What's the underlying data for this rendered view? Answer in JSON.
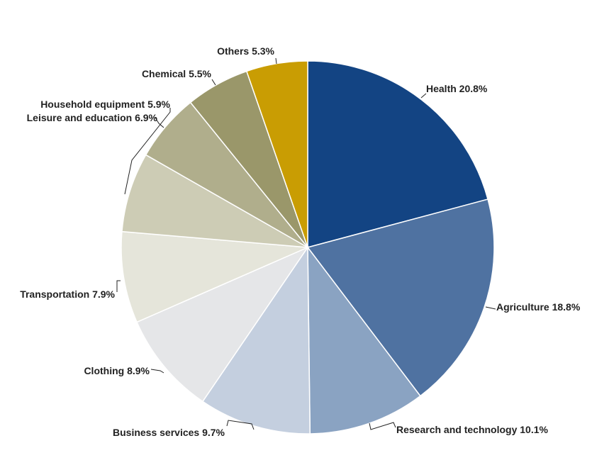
{
  "chart_data": {
    "type": "pie",
    "start_angle_deg": 0,
    "direction": "clockwise",
    "slices": [
      {
        "label": "Health 20.8%",
        "value": 20.8,
        "color": "#134483"
      },
      {
        "label": "Agriculture 18.8%",
        "value": 18.8,
        "color": "#4f72a1"
      },
      {
        "label": "Research and technology 10.1%",
        "value": 10.1,
        "color": "#8aa3c2"
      },
      {
        "label": "Business services 9.7%",
        "value": 9.7,
        "color": "#c4cfdf"
      },
      {
        "label": "Clothing 8.9%",
        "value": 8.9,
        "color": "#e5e6e8"
      },
      {
        "label": "Transportation 7.9%",
        "value": 7.9,
        "color": "#e5e5da"
      },
      {
        "label": "Leisure and education 6.9%",
        "value": 6.9,
        "color": "#cdccb5"
      },
      {
        "label": "Household equipment 5.9%",
        "value": 5.9,
        "color": "#b0ae8c"
      },
      {
        "label": "Chemical 5.5%",
        "value": 5.5,
        "color": "#9a976a"
      },
      {
        "label": "Others 5.3%",
        "value": 5.3,
        "color": "#c99d03"
      }
    ],
    "legend": "none",
    "labels": "outside-with-leader-lines"
  }
}
